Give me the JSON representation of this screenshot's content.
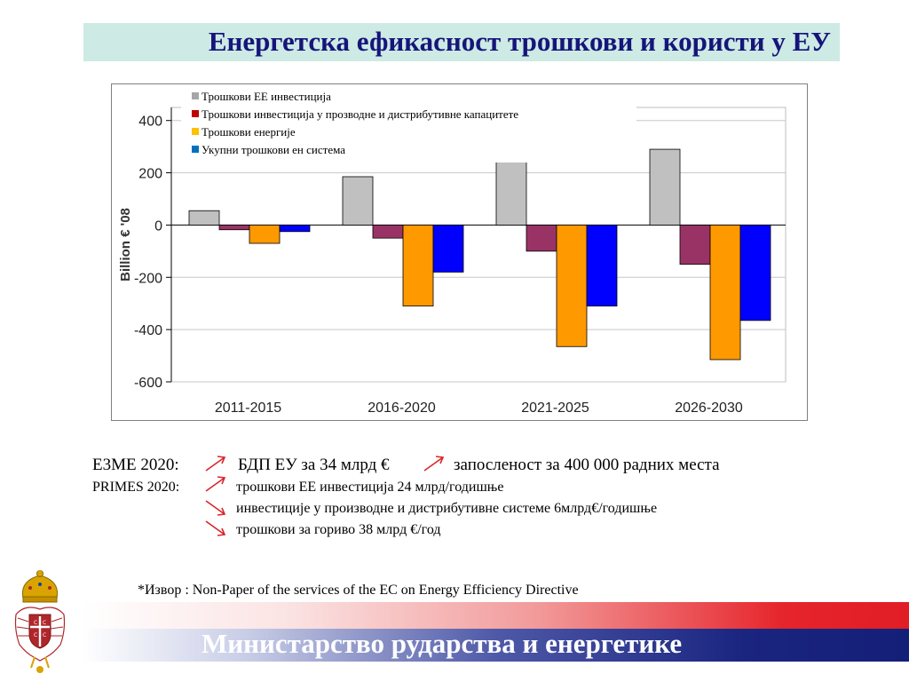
{
  "title": "Енергетска ефикасност  трошкови и користи у ЕУ",
  "chart_data": {
    "type": "bar",
    "categories": [
      "2011-2015",
      "2016-2020",
      "2021-2025",
      "2026-2030"
    ],
    "series": [
      {
        "name": "Трошкови ЕЕ инвестиција",
        "color": "#c0c0c0",
        "values": [
          55,
          185,
          255,
          290
        ]
      },
      {
        "name": "Трошкови инвестиција у прозводне и дистрибутивне капацитете",
        "color": "#993366",
        "values": [
          -18,
          -50,
          -100,
          -150
        ]
      },
      {
        "name": "Трошкови енергије",
        "color": "#ff9900",
        "values": [
          -70,
          -310,
          -465,
          -515
        ]
      },
      {
        "name": "Укупни трошкови  ен система",
        "color": "#0000ff",
        "values": [
          -25,
          -180,
          -310,
          -365
        ]
      }
    ],
    "legend_colors": [
      "#a6a6a6",
      "#c00000",
      "#ffc000",
      "#0070c0"
    ],
    "ylabel": "Billion € '08",
    "ylim": [
      -600,
      450
    ],
    "yticks": [
      400,
      200,
      0,
      -200,
      -400,
      -600
    ],
    "ytick_labels": [
      "400",
      "200",
      "0",
      "-200",
      "-400",
      "-600"
    ],
    "grid": true,
    "legend_position": "top"
  },
  "notes": {
    "line1_label": "Е3МЕ 2020:",
    "line1_gdp": "БДП ЕУ за 34 млрд €",
    "line1_jobs": "запосленост за 400 000 радних места",
    "line2_label": "PRIMES 2020:",
    "line2_text": "трошкови ЕЕ инвестиција 24 млрд/годишње",
    "line3_text": "инвестиције у производне и дистрибутивне системе 6млрд€/годишње",
    "line4_text": "трошкови за гориво 38 млрд €/год",
    "arrow_color": "#d9262b",
    "arrows": [
      "arrow-up-right-icon",
      "arrow-up-right-icon",
      "arrow-up-right-icon",
      "arrow-down-right-icon",
      "arrow-down-right-icon"
    ]
  },
  "source": "*Извор : Non-Paper of the services of the EC on Energy Efficiency Directive",
  "footer": {
    "ministry": "Министарство рударства и енергетике",
    "emblem": "serbian-coat-of-arms-icon"
  }
}
